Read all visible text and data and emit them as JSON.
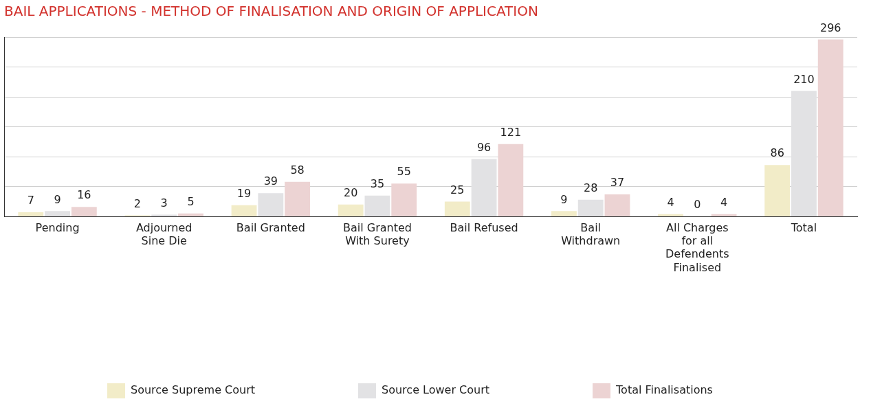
{
  "chart_data": {
    "type": "bar",
    "title": "BAIL APPLICATIONS - METHOD OF FINALISATION AND ORIGIN OF APPLICATION",
    "categories": [
      "Pending",
      "Adjourned Sine Die",
      "Bail Granted",
      "Bail Granted With Surety",
      "Bail Refused",
      "Bail Withdrawn",
      "All Charges for all Defendents Finalised",
      "Total"
    ],
    "series": [
      {
        "name": "Source Supreme Court",
        "color": "#f2ecc8",
        "values": [
          7,
          2,
          19,
          20,
          25,
          9,
          4,
          86
        ]
      },
      {
        "name": "Source Lower Court",
        "color": "#e2e2e4",
        "values": [
          9,
          3,
          39,
          35,
          96,
          28,
          0,
          210
        ]
      },
      {
        "name": "Total Finalisations",
        "color": "#ecd3d3",
        "values": [
          16,
          5,
          58,
          55,
          121,
          37,
          4,
          296
        ]
      }
    ],
    "ylim": [
      0,
      300
    ],
    "yticks": [
      {
        "value": 0,
        "label": null
      },
      {
        "value": 50,
        "label": null
      },
      {
        "value": 100,
        "label": null
      },
      {
        "value": 150,
        "label": null
      },
      {
        "value": 200,
        "label": null
      },
      {
        "value": 250,
        "label": null
      },
      {
        "value": 300,
        "label": null
      }
    ],
    "tick_labels": "x",
    "grid": "y",
    "legend": "bottom left",
    "data_labels": true
  }
}
